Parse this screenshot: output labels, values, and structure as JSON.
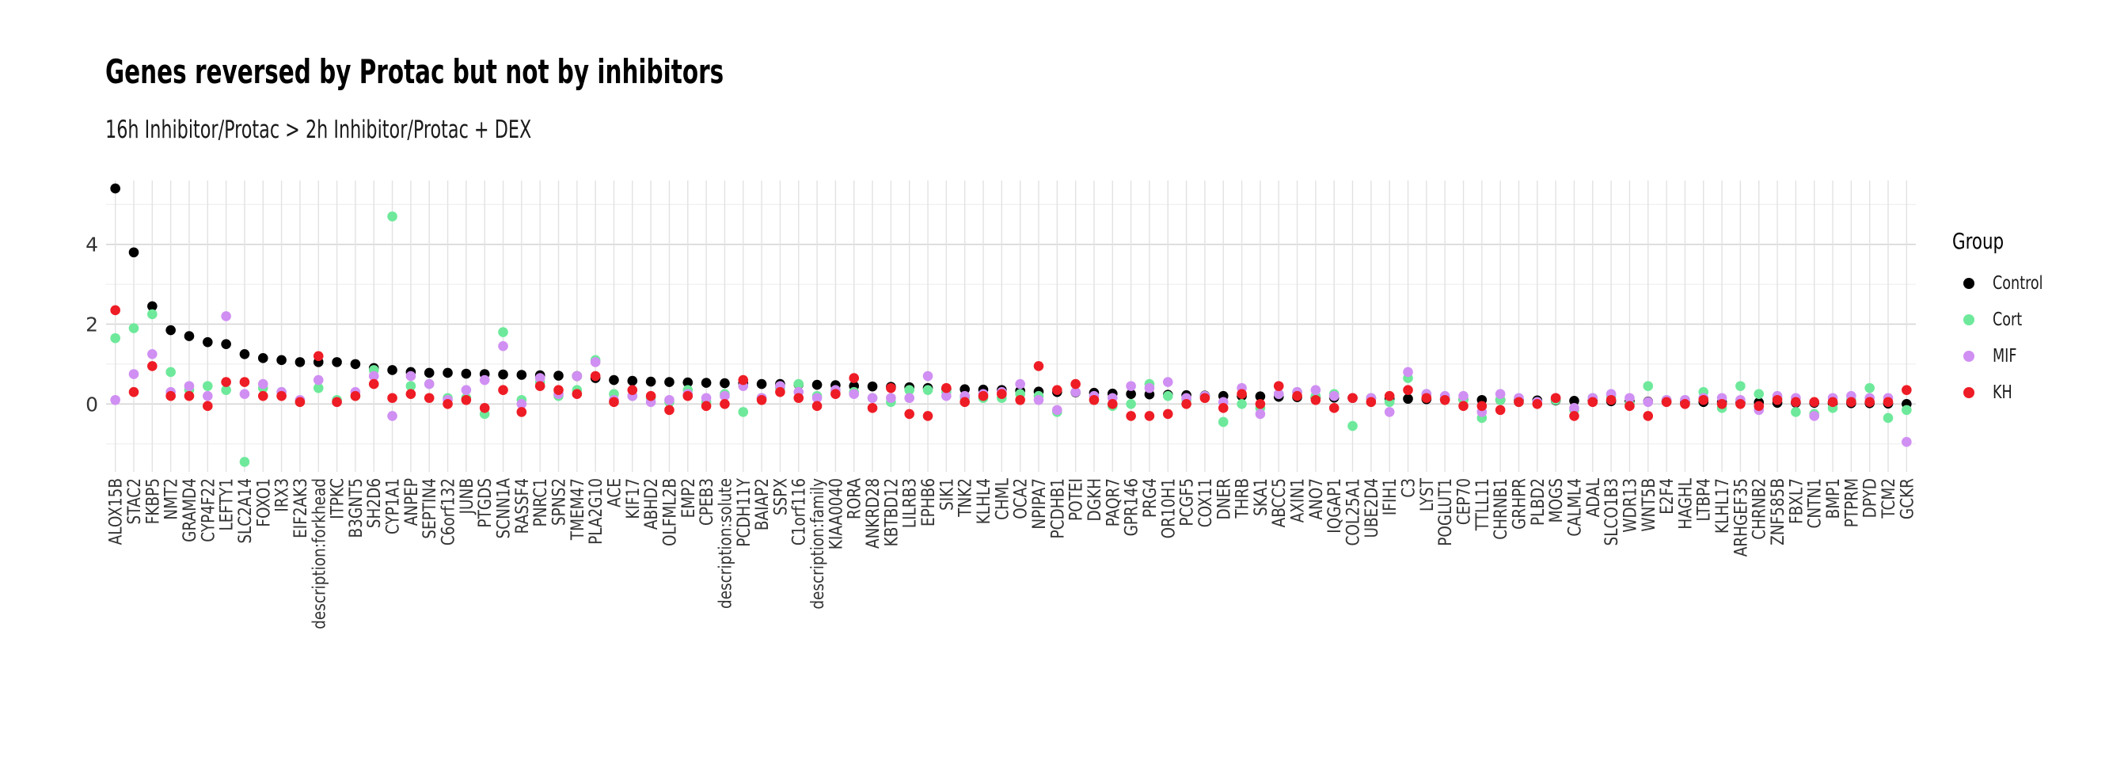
{
  "chart_data": {
    "type": "scatter",
    "title": "Genes reversed by Protac but not by inhibitors",
    "subtitle": "16h Inhibitor/Protac > 2h Inhibitor/Protac + DEX",
    "xlabel": "",
    "ylabel": "",
    "ylim": [
      -1.7,
      5.6
    ],
    "y_ticks": [
      0,
      2,
      4
    ],
    "grid": true,
    "legend_title": "Group",
    "legend_position": "right",
    "categories": [
      "ALOX15B",
      "STAC2",
      "FKBP5",
      "NMT2",
      "GRAMD4",
      "CYP4F22",
      "LEFTY1",
      "SLC2A14",
      "FOXO1",
      "IRX3",
      "EIF2AK3",
      "description:forkhead",
      "ITPKC",
      "B3GNT5",
      "SH2D6",
      "CYP1A1",
      "ANPEP",
      "SEPTIN4",
      "C6orf132",
      "JUNB",
      "PTGDS",
      "SCNN1A",
      "RASSF4",
      "PNRC1",
      "SPNS2",
      "TMEM47",
      "PLA2G10",
      "ACE",
      "KIF17",
      "ABHD2",
      "OLFML2B",
      "EMP2",
      "CPEB3",
      "description:solute",
      "PCDH11Y",
      "BAIAP2",
      "SSPX",
      "C1orf116",
      "description:family",
      "KIAA0040",
      "RORA",
      "ANKRD28",
      "KBTBD12",
      "LILRB3",
      "EPHB6",
      "SIK1",
      "TNK2",
      "KLHL4",
      "CHML",
      "OCA2",
      "NPIPA7",
      "PCDHB1",
      "POTEI",
      "DGKH",
      "PAQR7",
      "GPR146",
      "PRG4",
      "OR10H1",
      "PCGF5",
      "COX11",
      "DNER",
      "THRB",
      "SKA1",
      "ABCC5",
      "AXIN1",
      "ANO7",
      "IQGAP1",
      "COL25A1",
      "UBE2D4",
      "IFIH1",
      "C3",
      "LYST",
      "POGLUT1",
      "CEP70",
      "TTLL11",
      "CHRNB1",
      "GRHPR",
      "PLBD2",
      "MOGS",
      "CALML4",
      "ADAL",
      "SLCO1B3",
      "WDR13",
      "WNT5B",
      "E2F4",
      "HAGHL",
      "LTBP4",
      "KLHL17",
      "ARHGEF35",
      "CHRNB2",
      "ZNF585B",
      "FBXL7",
      "CNTN1",
      "BMP1",
      "PTPRM",
      "DPYD",
      "TCM2",
      "GCKR"
    ],
    "series": [
      {
        "name": "Control",
        "color": "#000000",
        "values": [
          5.4,
          3.8,
          2.45,
          1.85,
          1.7,
          1.55,
          1.5,
          1.25,
          1.15,
          1.1,
          1.05,
          1.05,
          1.05,
          1.0,
          0.9,
          0.85,
          0.8,
          0.78,
          0.78,
          0.76,
          0.75,
          0.74,
          0.73,
          0.72,
          0.71,
          0.7,
          0.65,
          0.6,
          0.58,
          0.56,
          0.55,
          0.54,
          0.53,
          0.52,
          0.52,
          0.5,
          0.5,
          0.49,
          0.48,
          0.47,
          0.45,
          0.44,
          0.43,
          0.42,
          0.4,
          0.38,
          0.37,
          0.36,
          0.35,
          0.33,
          0.31,
          0.3,
          0.29,
          0.28,
          0.26,
          0.25,
          0.24,
          0.23,
          0.22,
          0.21,
          0.2,
          0.2,
          0.19,
          0.18,
          0.17,
          0.16,
          0.16,
          0.15,
          0.14,
          0.13,
          0.13,
          0.12,
          0.12,
          0.11,
          0.1,
          0.1,
          0.1,
          0.09,
          0.09,
          0.08,
          0.08,
          0.07,
          0.07,
          0.06,
          0.06,
          0.05,
          0.05,
          0.05,
          0.04,
          0.04,
          0.03,
          0.03,
          0.03,
          0.02,
          0.02,
          0.02,
          0.01,
          0.0
        ]
      },
      {
        "name": "Cort",
        "color": "#6ee99b",
        "values": [
          1.65,
          1.9,
          2.25,
          0.8,
          0.35,
          0.45,
          0.35,
          -1.45,
          0.4,
          0.3,
          0.05,
          0.4,
          0.1,
          0.2,
          0.85,
          4.7,
          0.45,
          0.5,
          0.15,
          0.15,
          -0.25,
          1.8,
          0.1,
          0.55,
          0.2,
          0.35,
          1.1,
          0.25,
          0.2,
          0.15,
          0.05,
          0.35,
          0.05,
          0.25,
          -0.2,
          0.15,
          0.4,
          0.5,
          0.2,
          0.3,
          0.3,
          0.15,
          0.05,
          0.35,
          0.35,
          0.3,
          0.15,
          0.15,
          0.15,
          0.25,
          0.2,
          -0.2,
          0.3,
          0.1,
          -0.05,
          0.0,
          0.5,
          0.2,
          0.1,
          0.2,
          -0.45,
          0.0,
          -0.1,
          0.25,
          0.3,
          0.2,
          0.25,
          -0.55,
          0.15,
          0.05,
          0.65,
          0.25,
          0.15,
          0.1,
          -0.35,
          0.1,
          0.05,
          0.05,
          0.1,
          -0.15,
          0.15,
          0.2,
          0.0,
          0.45,
          0.1,
          0.1,
          0.3,
          -0.1,
          0.45,
          0.25,
          0.15,
          -0.2,
          -0.25,
          -0.1,
          0.1,
          0.4,
          -0.35,
          -0.15
        ]
      },
      {
        "name": "MIF",
        "color": "#d08ff2",
        "values": [
          0.1,
          0.75,
          1.25,
          0.3,
          0.45,
          0.2,
          2.2,
          0.25,
          0.5,
          0.3,
          0.1,
          0.6,
          0.05,
          0.3,
          0.7,
          -0.3,
          0.7,
          0.5,
          0.1,
          0.35,
          0.6,
          1.45,
          0.0,
          0.65,
          0.25,
          0.7,
          1.05,
          0.1,
          0.2,
          0.05,
          0.1,
          0.25,
          0.15,
          0.2,
          0.45,
          0.15,
          0.45,
          0.3,
          0.15,
          0.35,
          0.25,
          0.15,
          0.15,
          0.15,
          0.7,
          0.2,
          0.2,
          0.25,
          0.3,
          0.5,
          0.1,
          -0.15,
          0.3,
          0.2,
          0.15,
          0.45,
          0.4,
          0.55,
          0.15,
          0.2,
          0.05,
          0.4,
          -0.25,
          0.25,
          0.3,
          0.35,
          0.2,
          0.15,
          0.15,
          -0.2,
          0.8,
          0.25,
          0.2,
          0.2,
          -0.2,
          0.25,
          0.15,
          0.05,
          0.15,
          -0.1,
          0.15,
          0.25,
          0.15,
          0.05,
          0.1,
          0.1,
          0.15,
          0.15,
          0.1,
          -0.15,
          0.2,
          0.15,
          -0.3,
          0.15,
          0.2,
          0.15,
          0.15,
          -0.95
        ]
      },
      {
        "name": "KH",
        "color": "#ee1c25",
        "values": [
          2.35,
          0.3,
          0.95,
          0.2,
          0.2,
          -0.05,
          0.55,
          0.55,
          0.2,
          0.2,
          0.05,
          1.2,
          0.05,
          0.2,
          0.5,
          0.15,
          0.25,
          0.15,
          0.0,
          0.1,
          -0.1,
          0.35,
          -0.2,
          0.45,
          0.35,
          0.25,
          0.7,
          0.05,
          0.35,
          0.2,
          -0.15,
          0.2,
          -0.05,
          0.0,
          0.6,
          0.1,
          0.3,
          0.15,
          -0.05,
          0.25,
          0.65,
          -0.1,
          0.4,
          -0.25,
          -0.3,
          0.4,
          0.05,
          0.2,
          0.25,
          0.1,
          0.95,
          0.35,
          0.5,
          0.1,
          0.0,
          -0.3,
          -0.3,
          -0.25,
          0.0,
          0.15,
          -0.1,
          0.25,
          0.0,
          0.45,
          0.2,
          0.1,
          -0.1,
          0.15,
          0.05,
          0.2,
          0.35,
          0.15,
          0.1,
          -0.05,
          -0.05,
          -0.15,
          0.05,
          0.0,
          0.15,
          -0.3,
          0.05,
          0.1,
          -0.05,
          -0.3,
          0.05,
          0.0,
          0.1,
          0.0,
          0.0,
          -0.05,
          0.1,
          0.05,
          0.05,
          0.05,
          0.05,
          0.05,
          0.05,
          0.35
        ]
      }
    ]
  }
}
